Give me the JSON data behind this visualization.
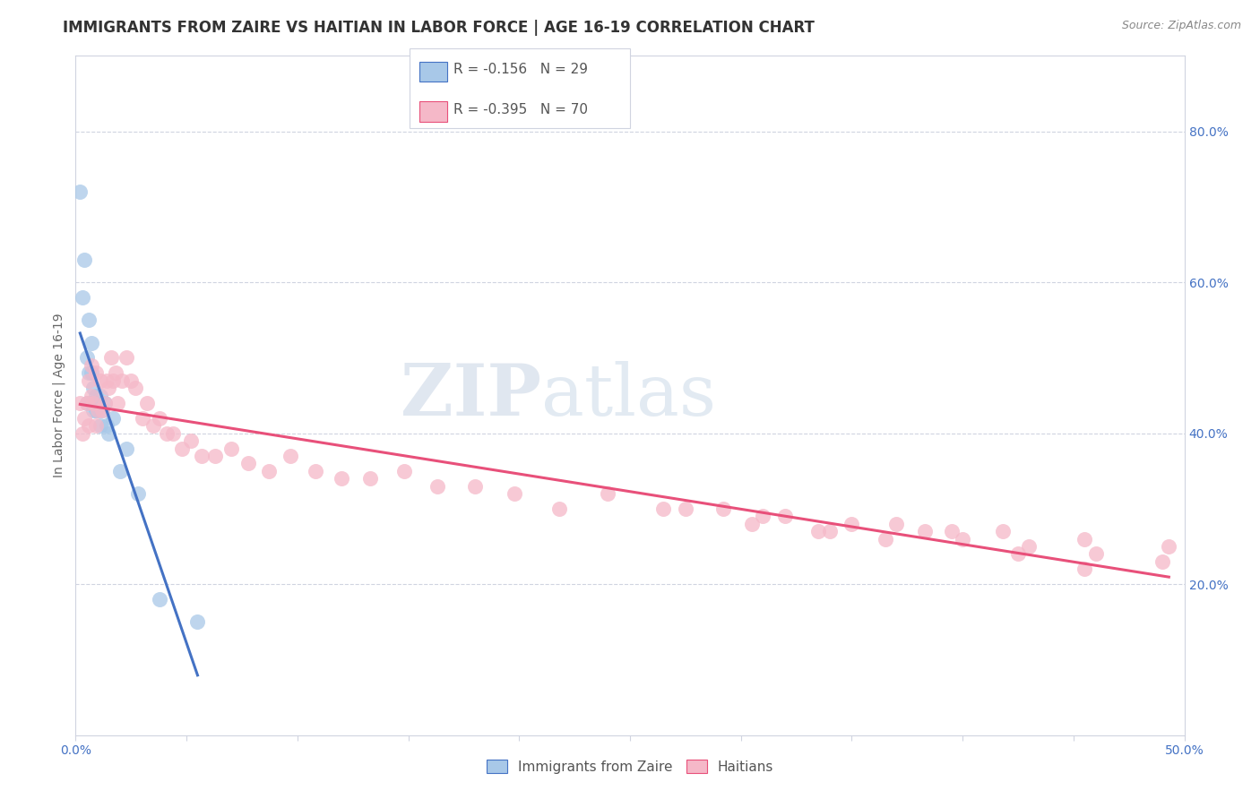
{
  "title": "IMMIGRANTS FROM ZAIRE VS HAITIAN IN LABOR FORCE | AGE 16-19 CORRELATION CHART",
  "source": "Source: ZipAtlas.com",
  "ylabel": "In Labor Force | Age 16-19",
  "xlim": [
    0.0,
    0.5
  ],
  "ylim": [
    0.0,
    0.9
  ],
  "yticks_right": [
    0.2,
    0.4,
    0.6,
    0.8
  ],
  "ytick_right_labels": [
    "20.0%",
    "40.0%",
    "60.0%",
    "80.0%"
  ],
  "zaire_color": "#a8c8e8",
  "haitian_color": "#f5b8c8",
  "zaire_line_color": "#4472c4",
  "haitian_line_color": "#e8507a",
  "dashed_line_color": "#9ab0cc",
  "zaire_R": "-0.156",
  "zaire_N": "29",
  "haitian_R": "-0.395",
  "haitian_N": "70",
  "zaire_points_x": [
    0.002,
    0.003,
    0.004,
    0.005,
    0.005,
    0.006,
    0.006,
    0.007,
    0.007,
    0.007,
    0.008,
    0.008,
    0.009,
    0.009,
    0.009,
    0.01,
    0.01,
    0.011,
    0.011,
    0.012,
    0.013,
    0.014,
    0.015,
    0.017,
    0.02,
    0.023,
    0.028,
    0.038,
    0.055
  ],
  "zaire_points_y": [
    0.72,
    0.58,
    0.63,
    0.5,
    0.44,
    0.55,
    0.48,
    0.52,
    0.48,
    0.44,
    0.46,
    0.43,
    0.44,
    0.45,
    0.43,
    0.44,
    0.43,
    0.45,
    0.41,
    0.43,
    0.44,
    0.41,
    0.4,
    0.42,
    0.35,
    0.38,
    0.32,
    0.18,
    0.15
  ],
  "haitian_points_x": [
    0.002,
    0.003,
    0.004,
    0.005,
    0.006,
    0.006,
    0.007,
    0.007,
    0.008,
    0.009,
    0.009,
    0.01,
    0.011,
    0.012,
    0.013,
    0.014,
    0.015,
    0.016,
    0.017,
    0.018,
    0.019,
    0.021,
    0.023,
    0.025,
    0.027,
    0.03,
    0.032,
    0.035,
    0.038,
    0.041,
    0.044,
    0.048,
    0.052,
    0.057,
    0.063,
    0.07,
    0.078,
    0.087,
    0.097,
    0.108,
    0.12,
    0.133,
    0.148,
    0.163,
    0.18,
    0.198,
    0.218,
    0.24,
    0.265,
    0.292,
    0.32,
    0.35,
    0.383,
    0.418,
    0.455,
    0.493,
    0.31,
    0.34,
    0.37,
    0.4,
    0.43,
    0.46,
    0.49,
    0.275,
    0.305,
    0.335,
    0.365,
    0.395,
    0.425,
    0.455
  ],
  "haitian_points_y": [
    0.44,
    0.4,
    0.42,
    0.44,
    0.41,
    0.47,
    0.45,
    0.49,
    0.44,
    0.48,
    0.41,
    0.43,
    0.47,
    0.43,
    0.44,
    0.47,
    0.46,
    0.5,
    0.47,
    0.48,
    0.44,
    0.47,
    0.5,
    0.47,
    0.46,
    0.42,
    0.44,
    0.41,
    0.42,
    0.4,
    0.4,
    0.38,
    0.39,
    0.37,
    0.37,
    0.38,
    0.36,
    0.35,
    0.37,
    0.35,
    0.34,
    0.34,
    0.35,
    0.33,
    0.33,
    0.32,
    0.3,
    0.32,
    0.3,
    0.3,
    0.29,
    0.28,
    0.27,
    0.27,
    0.26,
    0.25,
    0.29,
    0.27,
    0.28,
    0.26,
    0.25,
    0.24,
    0.23,
    0.3,
    0.28,
    0.27,
    0.26,
    0.27,
    0.24,
    0.22
  ],
  "watermark_zip": "ZIP",
  "watermark_atlas": "atlas",
  "background_color": "#ffffff",
  "grid_color": "#d0d4e0",
  "title_fontsize": 12,
  "axis_label_fontsize": 10,
  "tick_fontsize": 10,
  "legend_fontsize": 11
}
